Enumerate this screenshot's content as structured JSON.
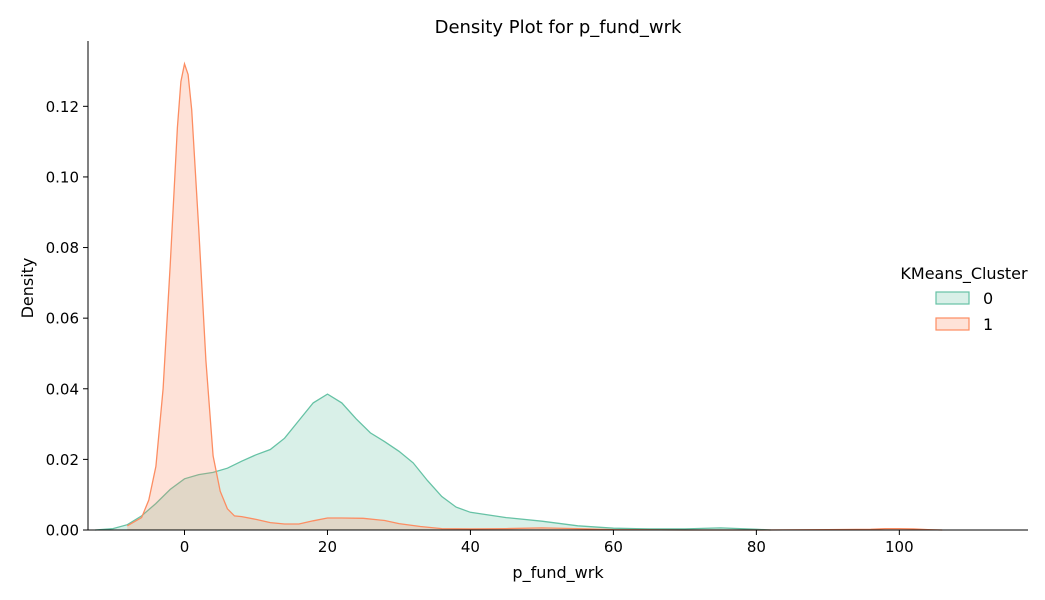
{
  "chart_data": {
    "type": "area",
    "title": "Density Plot for p_fund_wrk",
    "xlabel": "p_fund_wrk",
    "ylabel": "Density",
    "xlim": [
      -13.5,
      118
    ],
    "ylim": [
      0,
      0.1385
    ],
    "x_ticks": [
      0,
      20,
      40,
      60,
      80,
      100
    ],
    "x_tick_labels": [
      "0",
      "20",
      "40",
      "60",
      "80",
      "100"
    ],
    "y_ticks": [
      0.0,
      0.02,
      0.04,
      0.06,
      0.08,
      0.1,
      0.12
    ],
    "y_tick_labels": [
      "0.00",
      "0.02",
      "0.04",
      "0.06",
      "0.08",
      "0.10",
      "0.12"
    ],
    "grid": false,
    "legend": {
      "title": "KMeans_Cluster",
      "position": "right"
    },
    "series": [
      {
        "name": "0",
        "color": "#66c2a5",
        "fill": "#66c2a5",
        "x": [
          -12.5,
          -10,
          -8,
          -6,
          -4,
          -2,
          0,
          2,
          4,
          6,
          8,
          10,
          12,
          14,
          16,
          18,
          20,
          22,
          24,
          26,
          28,
          30,
          32,
          34,
          36,
          38,
          40,
          45,
          50,
          55,
          60,
          65,
          70,
          75,
          80,
          82
        ],
        "y": [
          0.0,
          0.0004,
          0.0015,
          0.004,
          0.0075,
          0.0115,
          0.0145,
          0.0157,
          0.0163,
          0.0175,
          0.0195,
          0.0213,
          0.0228,
          0.026,
          0.031,
          0.036,
          0.0385,
          0.036,
          0.0315,
          0.0275,
          0.025,
          0.0223,
          0.019,
          0.014,
          0.0095,
          0.0065,
          0.005,
          0.0035,
          0.0025,
          0.0012,
          0.0005,
          0.0003,
          0.0003,
          0.0006,
          0.0002,
          0.0
        ]
      },
      {
        "name": "1",
        "color": "#fc8d62",
        "fill": "#fc8d62",
        "x": [
          -8,
          -6,
          -5,
          -4,
          -3,
          -2,
          -1,
          -0.5,
          0,
          0.5,
          1,
          2,
          3,
          4,
          5,
          6,
          7,
          8,
          10,
          12,
          14,
          16,
          18,
          20,
          22,
          25,
          28,
          30,
          33,
          36,
          40,
          45,
          50,
          55,
          60,
          70,
          80,
          90,
          96,
          98,
          100,
          102,
          104,
          106
        ],
        "y": [
          0.0012,
          0.0035,
          0.0085,
          0.018,
          0.04,
          0.075,
          0.114,
          0.127,
          0.132,
          0.129,
          0.119,
          0.085,
          0.048,
          0.021,
          0.011,
          0.006,
          0.004,
          0.0038,
          0.003,
          0.0021,
          0.0017,
          0.0017,
          0.0026,
          0.0034,
          0.0034,
          0.0033,
          0.0027,
          0.0018,
          0.001,
          0.0004,
          0.0003,
          0.0004,
          0.0006,
          0.0004,
          0.0001,
          0.0,
          0.0,
          0.0001,
          0.0002,
          0.0004,
          0.0004,
          0.0003,
          0.0001,
          0.0
        ]
      }
    ]
  }
}
